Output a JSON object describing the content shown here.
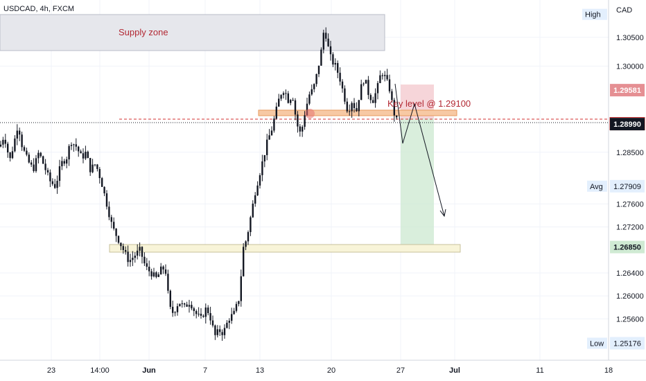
{
  "symbol": "USDCAD, 4h, FXCM",
  "currency": "CAD",
  "colors": {
    "up": "#26a69a",
    "down": "#131722",
    "candle": "#131722",
    "supply_zone": "#e6e7ec",
    "key_level_band": "#f7c9a4",
    "demand_band": "#f8f4d8",
    "stop_box": "#f3c7cc",
    "target_box": "#cfead3",
    "red_dash": "#d32f2f",
    "projection": "#131722"
  },
  "annotations": {
    "supply_zone": "Supply zone",
    "key_level": "Key level @ 1.29100"
  },
  "price_tags": [
    {
      "label": "High",
      "value": "",
      "style": "plain",
      "price": 1.309
    },
    {
      "label": "",
      "value": "1.29581",
      "style": "red",
      "price": 1.29581
    },
    {
      "label": "",
      "value": "1.28997",
      "style": "dark-outline",
      "price": 1.28997
    },
    {
      "label": "",
      "value": "1.28990",
      "style": "black",
      "price": 1.2899
    },
    {
      "label": "Avg",
      "value": "1.27909",
      "style": "plain",
      "price": 1.27909
    },
    {
      "label": "",
      "value": "1.26850",
      "style": "green",
      "price": 1.2685
    },
    {
      "label": "Low",
      "value": "1.25176",
      "style": "plain",
      "price": 1.25176
    }
  ],
  "chart_data": {
    "type": "candlestick",
    "title": "USDCAD, 4h, FXCM",
    "ylabel": "CAD",
    "ylim": [
      1.2488,
      1.3115
    ],
    "y_ticks": [
      "1.30500",
      "1.30000",
      "1.28500",
      "1.27600",
      "1.27200",
      "1.26400",
      "1.26000",
      "1.25600"
    ],
    "y_tick_values": [
      1.305,
      1.3,
      1.285,
      1.276,
      1.272,
      1.264,
      1.26,
      1.256
    ],
    "x_ticks": [
      "23",
      "14:00",
      "Jun",
      "7",
      "13",
      "20",
      "27",
      "Jul",
      "11",
      "18"
    ],
    "key_levels": {
      "key_level": 1.291,
      "stop": 1.29581,
      "entry": 1.28997,
      "last": 1.2899,
      "target": 1.2685,
      "average": 1.27909,
      "high": 1.309,
      "low": 1.25176
    },
    "price_path": [
      [
        0,
        1.286
      ],
      [
        6,
        1.288
      ],
      [
        14,
        1.2835
      ],
      [
        20,
        1.2865
      ],
      [
        26,
        1.29
      ],
      [
        32,
        1.286
      ],
      [
        40,
        1.2835
      ],
      [
        48,
        1.282
      ],
      [
        56,
        1.285
      ],
      [
        64,
        1.2825
      ],
      [
        72,
        1.28
      ],
      [
        80,
        1.279
      ],
      [
        88,
        1.283
      ],
      [
        96,
        1.284
      ],
      [
        102,
        1.287
      ],
      [
        110,
        1.286
      ],
      [
        118,
        1.284
      ],
      [
        124,
        1.285
      ],
      [
        130,
        1.282
      ],
      [
        138,
        1.283
      ],
      [
        146,
        1.28
      ],
      [
        154,
        1.276
      ],
      [
        162,
        1.272
      ],
      [
        170,
        1.27
      ],
      [
        178,
        1.268
      ],
      [
        186,
        1.266
      ],
      [
        194,
        1.267
      ],
      [
        202,
        1.268
      ],
      [
        210,
        1.265
      ],
      [
        218,
        1.264
      ],
      [
        226,
        1.263
      ],
      [
        234,
        1.265
      ],
      [
        240,
        1.264
      ],
      [
        244,
        1.258
      ],
      [
        250,
        1.257
      ],
      [
        258,
        1.259
      ],
      [
        266,
        1.258
      ],
      [
        274,
        1.259
      ],
      [
        282,
        1.257
      ],
      [
        290,
        1.256
      ],
      [
        298,
        1.258
      ],
      [
        304,
        1.256
      ],
      [
        310,
        1.253
      ],
      [
        316,
        1.254
      ],
      [
        322,
        1.2535
      ],
      [
        330,
        1.256
      ],
      [
        338,
        1.257
      ],
      [
        346,
        1.26
      ],
      [
        350,
        1.268
      ],
      [
        356,
        1.27
      ],
      [
        362,
        1.274
      ],
      [
        368,
        1.278
      ],
      [
        374,
        1.281
      ],
      [
        380,
        1.284
      ],
      [
        386,
        1.287
      ],
      [
        392,
        1.289
      ],
      [
        398,
        1.292
      ],
      [
        404,
        1.295
      ],
      [
        410,
        1.296
      ],
      [
        416,
        1.294
      ],
      [
        422,
        1.295
      ],
      [
        428,
        1.29
      ],
      [
        434,
        1.288
      ],
      [
        440,
        1.292
      ],
      [
        446,
        1.295
      ],
      [
        452,
        1.296
      ],
      [
        458,
        1.299
      ],
      [
        464,
        1.303
      ],
      [
        468,
        1.307
      ],
      [
        472,
        1.304
      ],
      [
        478,
        1.301
      ],
      [
        484,
        1.3
      ],
      [
        490,
        1.298
      ],
      [
        496,
        1.295
      ],
      [
        502,
        1.292
      ],
      [
        508,
        1.294
      ],
      [
        514,
        1.292
      ],
      [
        520,
        1.296
      ],
      [
        526,
        1.298
      ],
      [
        532,
        1.295
      ],
      [
        538,
        1.294
      ],
      [
        544,
        1.296
      ],
      [
        550,
        1.299
      ],
      [
        556,
        1.298
      ],
      [
        562,
        1.296
      ],
      [
        568,
        1.292
      ],
      [
        574,
        1.2899
      ]
    ]
  }
}
